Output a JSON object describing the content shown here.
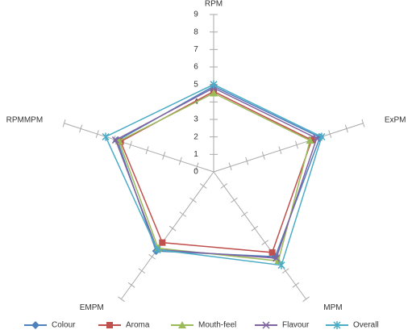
{
  "chart_data": {
    "type": "radar",
    "categories": [
      "RPM",
      "ExPM",
      "MPM",
      "EMPM",
      "RPMMPM"
    ],
    "rlim": [
      0,
      9
    ],
    "rticks": [
      0,
      1,
      2,
      3,
      4,
      5,
      6,
      7,
      8,
      9
    ],
    "legend": "bottom",
    "series": [
      {
        "name": "Colour",
        "color": "#4f81bd",
        "marker": "diamond",
        "values": [
          4.9,
          6.4,
          6.0,
          5.6,
          5.8
        ]
      },
      {
        "name": "Aroma",
        "color": "#c0504d",
        "marker": "square",
        "values": [
          4.6,
          5.9,
          5.7,
          5.0,
          5.6
        ]
      },
      {
        "name": "Mouth-feel",
        "color": "#9bbb59",
        "marker": "triangle",
        "values": [
          4.5,
          5.8,
          6.3,
          5.4,
          5.7
        ]
      },
      {
        "name": "Flavour",
        "color": "#8064a2",
        "marker": "x",
        "values": [
          4.8,
          6.2,
          6.1,
          5.5,
          5.9
        ]
      },
      {
        "name": "Overall",
        "color": "#4bacc6",
        "marker": "star",
        "values": [
          5.0,
          6.5,
          6.6,
          5.5,
          6.5
        ]
      }
    ]
  }
}
